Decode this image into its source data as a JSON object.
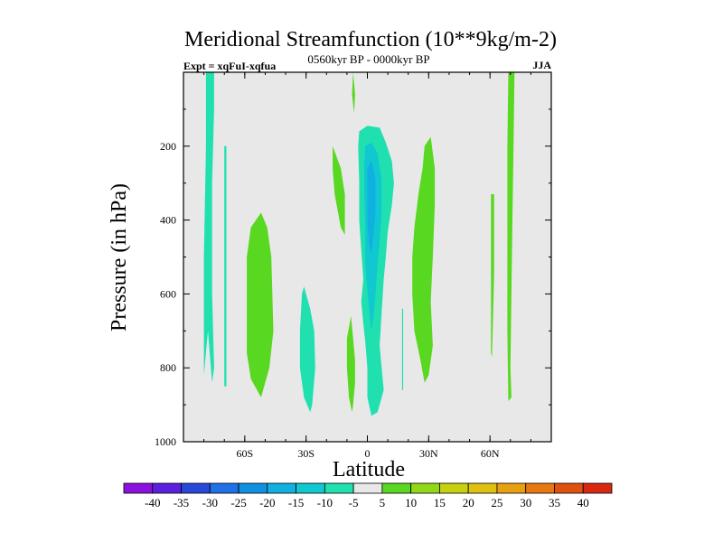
{
  "chart_data": {
    "type": "contour",
    "title": "Meridional Streamfunction (10**9kg/m-2)",
    "subtitle_left": "Expt = xqFuI-xqfua",
    "subtitle_center": "0560kyr BP - 0000kyr BP",
    "subtitle_right": "JJA",
    "xlabel": "Latitude",
    "ylabel": "Pressure (in hPa)",
    "xlim": [
      -90,
      90
    ],
    "ylim": [
      1000,
      0
    ],
    "x_ticks": [
      {
        "value": -60,
        "label": "60S"
      },
      {
        "value": -30,
        "label": "30S"
      },
      {
        "value": 0,
        "label": "0"
      },
      {
        "value": 30,
        "label": "30N"
      },
      {
        "value": 60,
        "label": "60N"
      }
    ],
    "y_ticks": [
      {
        "value": 200,
        "label": "200"
      },
      {
        "value": 400,
        "label": "400"
      },
      {
        "value": 600,
        "label": "600"
      },
      {
        "value": 800,
        "label": "800"
      },
      {
        "value": 1000,
        "label": "1000"
      }
    ],
    "background_color": "#e8e8e8",
    "levels": [
      -40,
      -35,
      -30,
      -25,
      -20,
      -15,
      -10,
      -5,
      5,
      10,
      15,
      20,
      25,
      30,
      35,
      40
    ],
    "colorbar_colors": [
      "#8c10e0",
      "#5a20e0",
      "#2848d8",
      "#2070e8",
      "#1090e0",
      "#10b0e0",
      "#10c8d0",
      "#20e0b0",
      "#e8e8e8",
      "#58d820",
      "#90d818",
      "#c8d010",
      "#e0c010",
      "#e8a010",
      "#e87810",
      "#e05010",
      "#d82810"
    ],
    "regions": [
      {
        "label": "-5",
        "color": "#20e0b0",
        "points": [
          [
            -79,
            0
          ],
          [
            -75,
            0
          ],
          [
            -75,
            100
          ],
          [
            -76,
            300
          ],
          [
            -76,
            600
          ],
          [
            -75,
            800
          ],
          [
            -76,
            840
          ],
          [
            -78,
            700
          ],
          [
            -80,
            820
          ],
          [
            -80,
            500
          ],
          [
            -79,
            200
          ]
        ]
      },
      {
        "label": "-5",
        "color": "#20e0b0",
        "points": [
          [
            -70,
            200
          ],
          [
            -69,
            200
          ],
          [
            -69,
            500
          ],
          [
            -69,
            850
          ],
          [
            -70,
            850
          ],
          [
            -70,
            600
          ]
        ]
      },
      {
        "label": "5",
        "color": "#58d820",
        "points": [
          [
            -52,
            380
          ],
          [
            -49,
            420
          ],
          [
            -47,
            500
          ],
          [
            -46,
            700
          ],
          [
            -48,
            800
          ],
          [
            -52,
            880
          ],
          [
            -57,
            830
          ],
          [
            -59,
            760
          ],
          [
            -59,
            500
          ],
          [
            -57,
            420
          ]
        ]
      },
      {
        "label": "-5",
        "color": "#20e0b0",
        "points": [
          [
            -31,
            580
          ],
          [
            -28,
            640
          ],
          [
            -26,
            700
          ],
          [
            -25.5,
            800
          ],
          [
            -27,
            900
          ],
          [
            -28,
            920
          ],
          [
            -31,
            880
          ],
          [
            -33,
            800
          ],
          [
            -33,
            700
          ],
          [
            -32,
            600
          ]
        ]
      },
      {
        "label": "5",
        "color": "#58d820",
        "points": [
          [
            -17,
            200
          ],
          [
            -13,
            260
          ],
          [
            -11,
            330
          ],
          [
            -11,
            400
          ],
          [
            -11,
            440
          ],
          [
            -13,
            420
          ],
          [
            -16,
            330
          ],
          [
            -17,
            260
          ]
        ]
      },
      {
        "label": "5",
        "color": "#58d820",
        "points": [
          [
            -7,
            -100
          ],
          [
            -6,
            60
          ],
          [
            -6.5,
            110
          ],
          [
            -7.5,
            60
          ]
        ]
      },
      {
        "label": "5",
        "color": "#58d820",
        "points": [
          [
            -8,
            660
          ],
          [
            -7,
            720
          ],
          [
            -6,
            780
          ],
          [
            -6,
            840
          ],
          [
            -7,
            900
          ],
          [
            -7.5,
            920
          ],
          [
            -9,
            880
          ],
          [
            -10,
            800
          ],
          [
            -10,
            720
          ]
        ]
      },
      {
        "label": "-5",
        "color": "#20e0b0",
        "points": [
          [
            -4,
            160
          ],
          [
            0,
            145
          ],
          [
            6,
            150
          ],
          [
            9,
            190
          ],
          [
            12,
            240
          ],
          [
            13,
            300
          ],
          [
            12,
            360
          ],
          [
            10,
            430
          ],
          [
            9,
            500
          ],
          [
            8,
            560
          ],
          [
            7,
            650
          ],
          [
            6,
            740
          ],
          [
            7,
            800
          ],
          [
            8,
            860
          ],
          [
            5,
            920
          ],
          [
            2,
            930
          ],
          [
            0,
            880
          ],
          [
            0,
            800
          ],
          [
            -1,
            730
          ],
          [
            -2,
            680
          ],
          [
            -3,
            620
          ],
          [
            -2,
            560
          ],
          [
            -3,
            480
          ],
          [
            -4,
            400
          ],
          [
            -4,
            300
          ],
          [
            -4.5,
            200
          ]
        ]
      },
      {
        "label": "-10",
        "color": "#10c8d0",
        "points": [
          [
            -1,
            200
          ],
          [
            2,
            190
          ],
          [
            5,
            220
          ],
          [
            7,
            290
          ],
          [
            7,
            380
          ],
          [
            6,
            460
          ],
          [
            5,
            520
          ],
          [
            4,
            600
          ],
          [
            3,
            660
          ],
          [
            2,
            700
          ],
          [
            1,
            650
          ],
          [
            0,
            590
          ],
          [
            -1,
            520
          ],
          [
            -1,
            420
          ],
          [
            -1.5,
            320
          ],
          [
            -1.5,
            250
          ]
        ]
      },
      {
        "label": "-15",
        "color": "#10b0e0",
        "points": [
          [
            0,
            260
          ],
          [
            2,
            240
          ],
          [
            4,
            290
          ],
          [
            4,
            380
          ],
          [
            3,
            440
          ],
          [
            2,
            490
          ],
          [
            1,
            470
          ],
          [
            0,
            410
          ],
          [
            0,
            330
          ]
        ]
      },
      {
        "label": "-5",
        "color": "#20e0b0",
        "points": [
          [
            17,
            640
          ],
          [
            17.5,
            640
          ],
          [
            17.5,
            860
          ],
          [
            17,
            860
          ]
        ]
      },
      {
        "label": "5",
        "color": "#58d820",
        "points": [
          [
            28,
            200
          ],
          [
            31,
            175
          ],
          [
            33,
            260
          ],
          [
            33,
            360
          ],
          [
            32,
            500
          ],
          [
            31,
            620
          ],
          [
            32,
            740
          ],
          [
            30,
            820
          ],
          [
            28,
            840
          ],
          [
            26,
            780
          ],
          [
            23,
            700
          ],
          [
            22,
            600
          ],
          [
            22,
            500
          ],
          [
            23,
            420
          ],
          [
            25,
            330
          ],
          [
            27,
            260
          ]
        ]
      },
      {
        "label": "5",
        "color": "#58d820",
        "points": [
          [
            60.5,
            330
          ],
          [
            62,
            330
          ],
          [
            62,
            550
          ],
          [
            61,
            770
          ],
          [
            60.5,
            760
          ]
        ]
      },
      {
        "label": "5",
        "color": "#58d820",
        "points": [
          [
            69,
            0
          ],
          [
            72,
            0
          ],
          [
            71.5,
            200
          ],
          [
            71,
            400
          ],
          [
            70.5,
            600
          ],
          [
            70,
            800
          ],
          [
            70.5,
            880
          ],
          [
            69,
            890
          ],
          [
            68.5,
            700
          ],
          [
            68.5,
            400
          ],
          [
            68.5,
            200
          ]
        ]
      }
    ]
  }
}
